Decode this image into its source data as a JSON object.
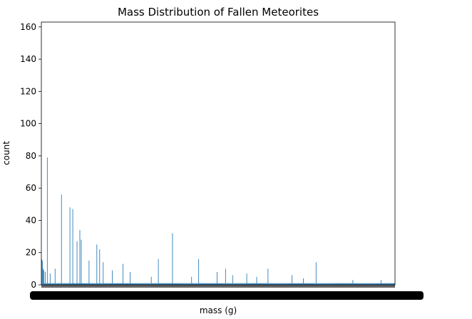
{
  "chart_data": {
    "type": "bar",
    "title": "Mass Distribution of Fallen Meteorites",
    "xlabel": "mass (g)",
    "ylabel": "count",
    "ylim": [
      0,
      163
    ],
    "yticks": [
      0,
      20,
      40,
      60,
      80,
      100,
      120,
      140,
      160
    ],
    "bar_color": "#1f77b4",
    "grid": false,
    "legend": "none",
    "bar_count": 500,
    "notable_bars": [
      {
        "index": 0,
        "value": 16
      },
      {
        "index": 1,
        "value": 15
      },
      {
        "index": 2,
        "value": 10
      },
      {
        "index": 3,
        "value": 9
      },
      {
        "index": 5,
        "value": 8
      },
      {
        "index": 8,
        "value": 79
      },
      {
        "index": 12,
        "value": 7
      },
      {
        "index": 19,
        "value": 10
      },
      {
        "index": 28,
        "value": 56
      },
      {
        "index": 40,
        "value": 48
      },
      {
        "index": 44,
        "value": 47
      },
      {
        "index": 50,
        "value": 27
      },
      {
        "index": 54,
        "value": 34
      },
      {
        "index": 56,
        "value": 28
      },
      {
        "index": 67,
        "value": 15
      },
      {
        "index": 78,
        "value": 25
      },
      {
        "index": 82,
        "value": 22
      },
      {
        "index": 87,
        "value": 14
      },
      {
        "index": 100,
        "value": 9
      },
      {
        "index": 115,
        "value": 13
      },
      {
        "index": 125,
        "value": 8
      },
      {
        "index": 155,
        "value": 5
      },
      {
        "index": 165,
        "value": 16
      },
      {
        "index": 185,
        "value": 32
      },
      {
        "index": 212,
        "value": 5
      },
      {
        "index": 222,
        "value": 16
      },
      {
        "index": 248,
        "value": 8
      },
      {
        "index": 260,
        "value": 10
      },
      {
        "index": 270,
        "value": 6
      },
      {
        "index": 290,
        "value": 7
      },
      {
        "index": 304,
        "value": 5
      },
      {
        "index": 320,
        "value": 10
      },
      {
        "index": 354,
        "value": 6
      },
      {
        "index": 370,
        "value": 4
      },
      {
        "index": 388,
        "value": 14
      },
      {
        "index": 440,
        "value": 3
      },
      {
        "index": 480,
        "value": 3
      }
    ],
    "baseline_value": 1
  }
}
